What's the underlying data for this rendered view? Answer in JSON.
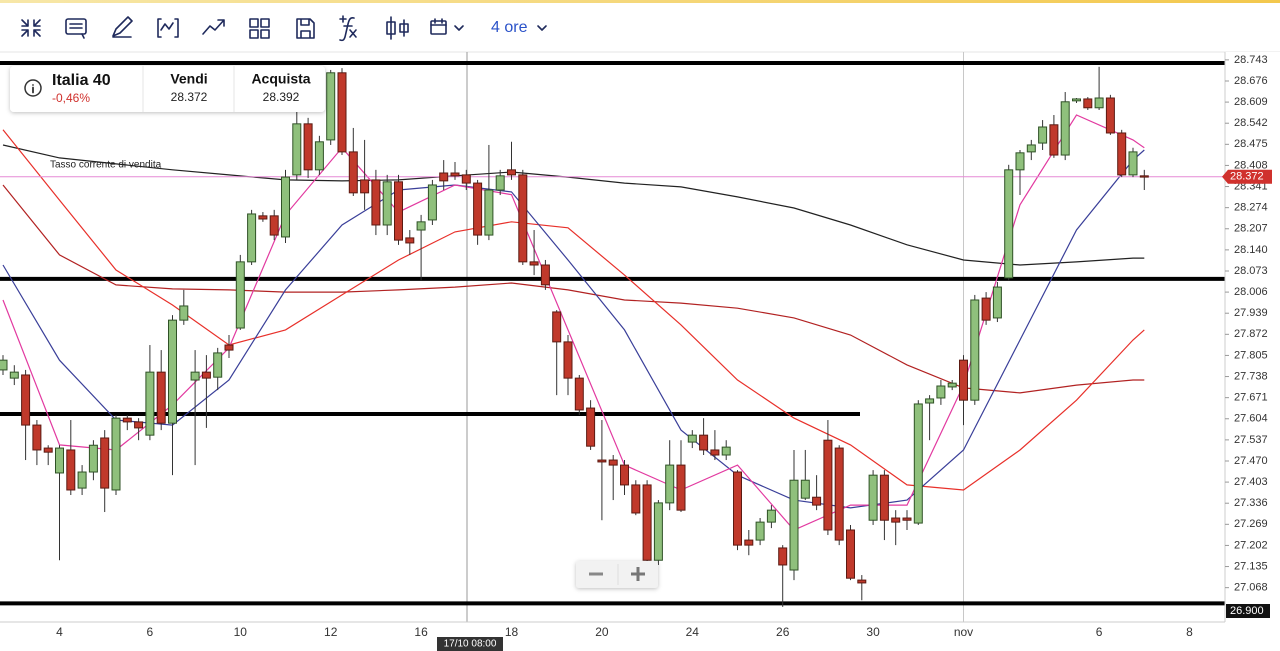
{
  "toolbar": {
    "timeframe": "4 ore"
  },
  "instrument": {
    "name": "Italia 40",
    "change": "-0,46%",
    "sell_label": "Vendi",
    "sell": "28.372",
    "buy_label": "Acquista",
    "buy": "28.392"
  },
  "chart_data": {
    "type": "candlestick",
    "annotation": "Tasso corrente di vendita",
    "crosshair_label": "17/10 08:00",
    "categories": [
      null,
      null,
      null,
      null,
      null,
      "4",
      null,
      null,
      null,
      null,
      null,
      null,
      null,
      "6",
      null,
      null,
      null,
      null,
      null,
      null,
      null,
      "10",
      null,
      null,
      null,
      null,
      null,
      null,
      null,
      "12",
      null,
      null,
      null,
      null,
      null,
      null,
      null,
      "16",
      null,
      null,
      null,
      null,
      null,
      null,
      null,
      "18",
      null,
      null,
      null,
      null,
      null,
      null,
      null,
      "20",
      null,
      null,
      null,
      null,
      null,
      null,
      null,
      "24",
      null,
      null,
      null,
      null,
      null,
      null,
      null,
      "26",
      null,
      null,
      null,
      null,
      null,
      null,
      null,
      "30",
      null,
      null,
      null,
      null,
      null,
      null,
      null,
      "nov",
      null,
      null,
      null,
      null,
      null,
      null,
      null,
      null,
      null,
      null,
      null,
      "6",
      null,
      null,
      null,
      null,
      null,
      null,
      null,
      "8"
    ],
    "open": [
      27.759,
      27.733,
      27.743,
      27.584,
      27.511,
      27.432,
      27.505,
      27.384,
      27.435,
      27.543,
      27.378,
      27.606,
      27.594,
      27.552,
      27.752,
      27.59,
      27.917,
      27.727,
      27.752,
      27.736,
      27.838,
      27.892,
      28.102,
      28.248,
      28.248,
      28.181,
      28.378,
      28.54,
      28.394,
      28.489,
      28.702,
      28.451,
      28.362,
      28.362,
      28.219,
      28.356,
      28.178,
      28.203,
      28.235,
      28.384,
      28.384,
      28.378,
      28.352,
      28.187,
      28.33,
      28.394,
      28.378,
      28.102,
      28.092,
      27.943,
      27.848,
      27.733,
      27.638,
      27.473,
      27.473,
      27.457,
      27.394,
      27.394,
      27.155,
      27.337,
      27.457,
      27.53,
      27.552,
      27.505,
      27.489,
      27.435,
      27.219,
      27.219,
      27.276,
      27.194,
      27.124,
      27.352,
      27.355,
      27.536,
      27.511,
      27.251,
      27.092,
      27.282,
      27.425,
      27.289,
      27.289,
      27.273,
      27.654,
      27.67,
      27.705,
      27.79,
      27.663,
      27.987,
      27.924,
      28.051,
      28.394,
      28.451,
      28.479,
      28.537,
      28.441,
      28.613,
      28.619,
      28.591,
      28.622,
      28.511,
      28.378,
      28.375,
      null,
      null,
      null,
      null
    ],
    "high": [
      27.806,
      27.774,
      27.759,
      27.6,
      27.52,
      27.52,
      27.6,
      27.457,
      27.536,
      27.568,
      27.616,
      27.616,
      27.606,
      27.838,
      27.822,
      27.933,
      28.013,
      27.822,
      27.806,
      27.829,
      27.87,
      28.124,
      28.267,
      28.26,
      28.267,
      28.394,
      28.578,
      28.559,
      28.502,
      28.711,
      28.717,
      28.527,
      28.489,
      28.394,
      28.378,
      28.378,
      28.203,
      28.251,
      28.362,
      28.425,
      28.419,
      28.394,
      28.362,
      28.473,
      28.394,
      28.483,
      28.394,
      28.203,
      28.108,
      27.949,
      27.87,
      27.743,
      27.663,
      27.6,
      27.489,
      27.473,
      27.409,
      27.409,
      27.346,
      27.536,
      27.536,
      27.568,
      27.606,
      27.568,
      27.536,
      27.441,
      27.251,
      27.289,
      27.33,
      27.203,
      27.505,
      27.505,
      27.425,
      27.6,
      27.52,
      27.267,
      27.108,
      27.441,
      27.441,
      27.314,
      27.314,
      27.663,
      27.679,
      27.727,
      27.727,
      27.806,
      27.997,
      28.006,
      28.038,
      28.41,
      28.457,
      28.489,
      28.552,
      28.568,
      28.641,
      28.622,
      28.625,
      28.721,
      28.632,
      28.521,
      28.464,
      28.394,
      null,
      null,
      null,
      null
    ],
    "low": [
      27.743,
      27.711,
      27.473,
      27.457,
      27.457,
      27.155,
      27.362,
      27.362,
      27.409,
      27.308,
      27.362,
      27.568,
      27.536,
      27.536,
      27.568,
      27.425,
      27.902,
      27.457,
      27.575,
      27.695,
      27.797,
      27.886,
      28.092,
      28.229,
      28.171,
      28.162,
      28.362,
      28.368,
      28.378,
      28.473,
      28.441,
      28.311,
      28.267,
      28.187,
      28.187,
      28.156,
      28.124,
      28.044,
      28.219,
      28.33,
      28.362,
      28.33,
      28.156,
      28.171,
      28.314,
      28.362,
      28.092,
      28.06,
      28.013,
      27.679,
      27.679,
      27.616,
      27.505,
      27.282,
      27.346,
      27.362,
      27.298,
      27.14,
      27.14,
      27.314,
      27.308,
      27.511,
      27.489,
      27.473,
      27.473,
      27.187,
      27.171,
      27.203,
      27.257,
      27.007,
      27.092,
      27.346,
      27.314,
      27.235,
      27.203,
      27.092,
      27.028,
      27.267,
      27.219,
      27.203,
      27.251,
      27.267,
      27.536,
      27.648,
      27.695,
      27.584,
      27.648,
      27.902,
      27.911,
      28.044,
      28.314,
      28.425,
      28.457,
      28.432,
      28.425,
      28.606,
      28.584,
      28.584,
      28.505,
      28.371,
      28.371,
      28.33,
      null,
      null,
      null,
      null
    ],
    "close": [
      27.79,
      27.752,
      27.584,
      27.505,
      27.498,
      27.511,
      27.378,
      27.435,
      27.52,
      27.384,
      27.606,
      27.594,
      27.575,
      27.752,
      27.59,
      27.917,
      27.962,
      27.752,
      27.733,
      27.813,
      27.822,
      28.102,
      28.254,
      28.238,
      28.187,
      28.371,
      28.54,
      28.394,
      28.483,
      28.702,
      28.451,
      28.321,
      28.321,
      28.219,
      28.356,
      28.171,
      28.162,
      28.229,
      28.346,
      28.359,
      28.375,
      28.352,
      28.187,
      28.33,
      28.375,
      28.378,
      28.102,
      28.092,
      28.029,
      27.848,
      27.733,
      27.632,
      27.517,
      27.467,
      27.457,
      27.394,
      27.305,
      27.155,
      27.337,
      27.457,
      27.314,
      27.552,
      27.505,
      27.489,
      27.514,
      27.203,
      27.203,
      27.276,
      27.314,
      27.14,
      27.409,
      27.409,
      27.33,
      27.251,
      27.219,
      27.098,
      27.083,
      27.425,
      27.282,
      27.276,
      27.282,
      27.651,
      27.667,
      27.708,
      27.717,
      27.663,
      27.981,
      27.917,
      28.022,
      28.394,
      28.448,
      28.473,
      28.53,
      28.441,
      28.61,
      28.619,
      28.591,
      28.622,
      28.511,
      28.378,
      28.451,
      28.371,
      null,
      null,
      null,
      null
    ],
    "up_color": "#8fc07c",
    "down_color": "#c0392b",
    "overlay_x": [
      0,
      5,
      10,
      15,
      20,
      25,
      30,
      35,
      40,
      45,
      50,
      55,
      60,
      65,
      70,
      75,
      80,
      85,
      90,
      95,
      100,
      101
    ],
    "overlays": [
      {
        "color": "#222222",
        "values": [
          28.473,
          28.432,
          28.413,
          28.394,
          28.378,
          28.362,
          28.359,
          28.362,
          28.375,
          28.387,
          28.371,
          28.352,
          28.34,
          28.308,
          28.273,
          28.219,
          28.156,
          28.108,
          28.092,
          28.102,
          28.114,
          28.114
        ]
      },
      {
        "color": "#b22222",
        "values": [
          28.346,
          28.124,
          28.029,
          28.016,
          28.013,
          28.006,
          28.006,
          28.013,
          28.022,
          28.035,
          28.013,
          27.981,
          27.971,
          27.955,
          27.924,
          27.87,
          27.775,
          27.702,
          27.686,
          27.711,
          27.727,
          27.727
        ]
      },
      {
        "color": "#e8302a",
        "values": [
          28.521,
          28.298,
          28.076,
          27.965,
          27.838,
          27.886,
          27.997,
          28.108,
          28.197,
          28.229,
          28.21,
          28.06,
          27.902,
          27.727,
          27.606,
          27.521,
          27.394,
          27.378,
          27.505,
          27.663,
          27.854,
          27.886
        ]
      },
      {
        "color": "#3a3f99",
        "values": [
          28.092,
          27.79,
          27.6,
          27.584,
          27.727,
          28.013,
          28.219,
          28.33,
          28.346,
          28.324,
          28.108,
          27.886,
          27.568,
          27.425,
          27.346,
          27.321,
          27.346,
          27.505,
          27.854,
          28.203,
          28.425,
          28.457
        ]
      },
      {
        "color": "#e23aa0",
        "values": [
          27.981,
          27.521,
          27.505,
          27.648,
          27.829,
          28.251,
          28.464,
          28.26,
          28.346,
          28.315,
          27.886,
          27.457,
          27.378,
          27.457,
          27.251,
          27.33,
          27.33,
          27.711,
          28.283,
          28.568,
          28.489,
          28.464
        ]
      }
    ],
    "levels": [
      28.733,
      28.048,
      27.619,
      27.018
    ],
    "current_price": 28.372,
    "bottom_tag": {
      "value": 26.9,
      "label": "26.900"
    },
    "ylim": [
      26.959,
      28.768
    ],
    "yticks": [
      28.743,
      28.676,
      28.609,
      28.542,
      28.475,
      28.408,
      28.341,
      28.274,
      28.207,
      {
        "value": 28.14,
        "label": "28.140"
      },
      28.073,
      28.006,
      27.939,
      27.872,
      27.805,
      27.738,
      27.671,
      27.604,
      27.537,
      {
        "value": 27.47,
        "label": "27.470"
      },
      27.403,
      27.336,
      27.269,
      27.202,
      27.135,
      27.068
    ],
    "grid": false
  }
}
